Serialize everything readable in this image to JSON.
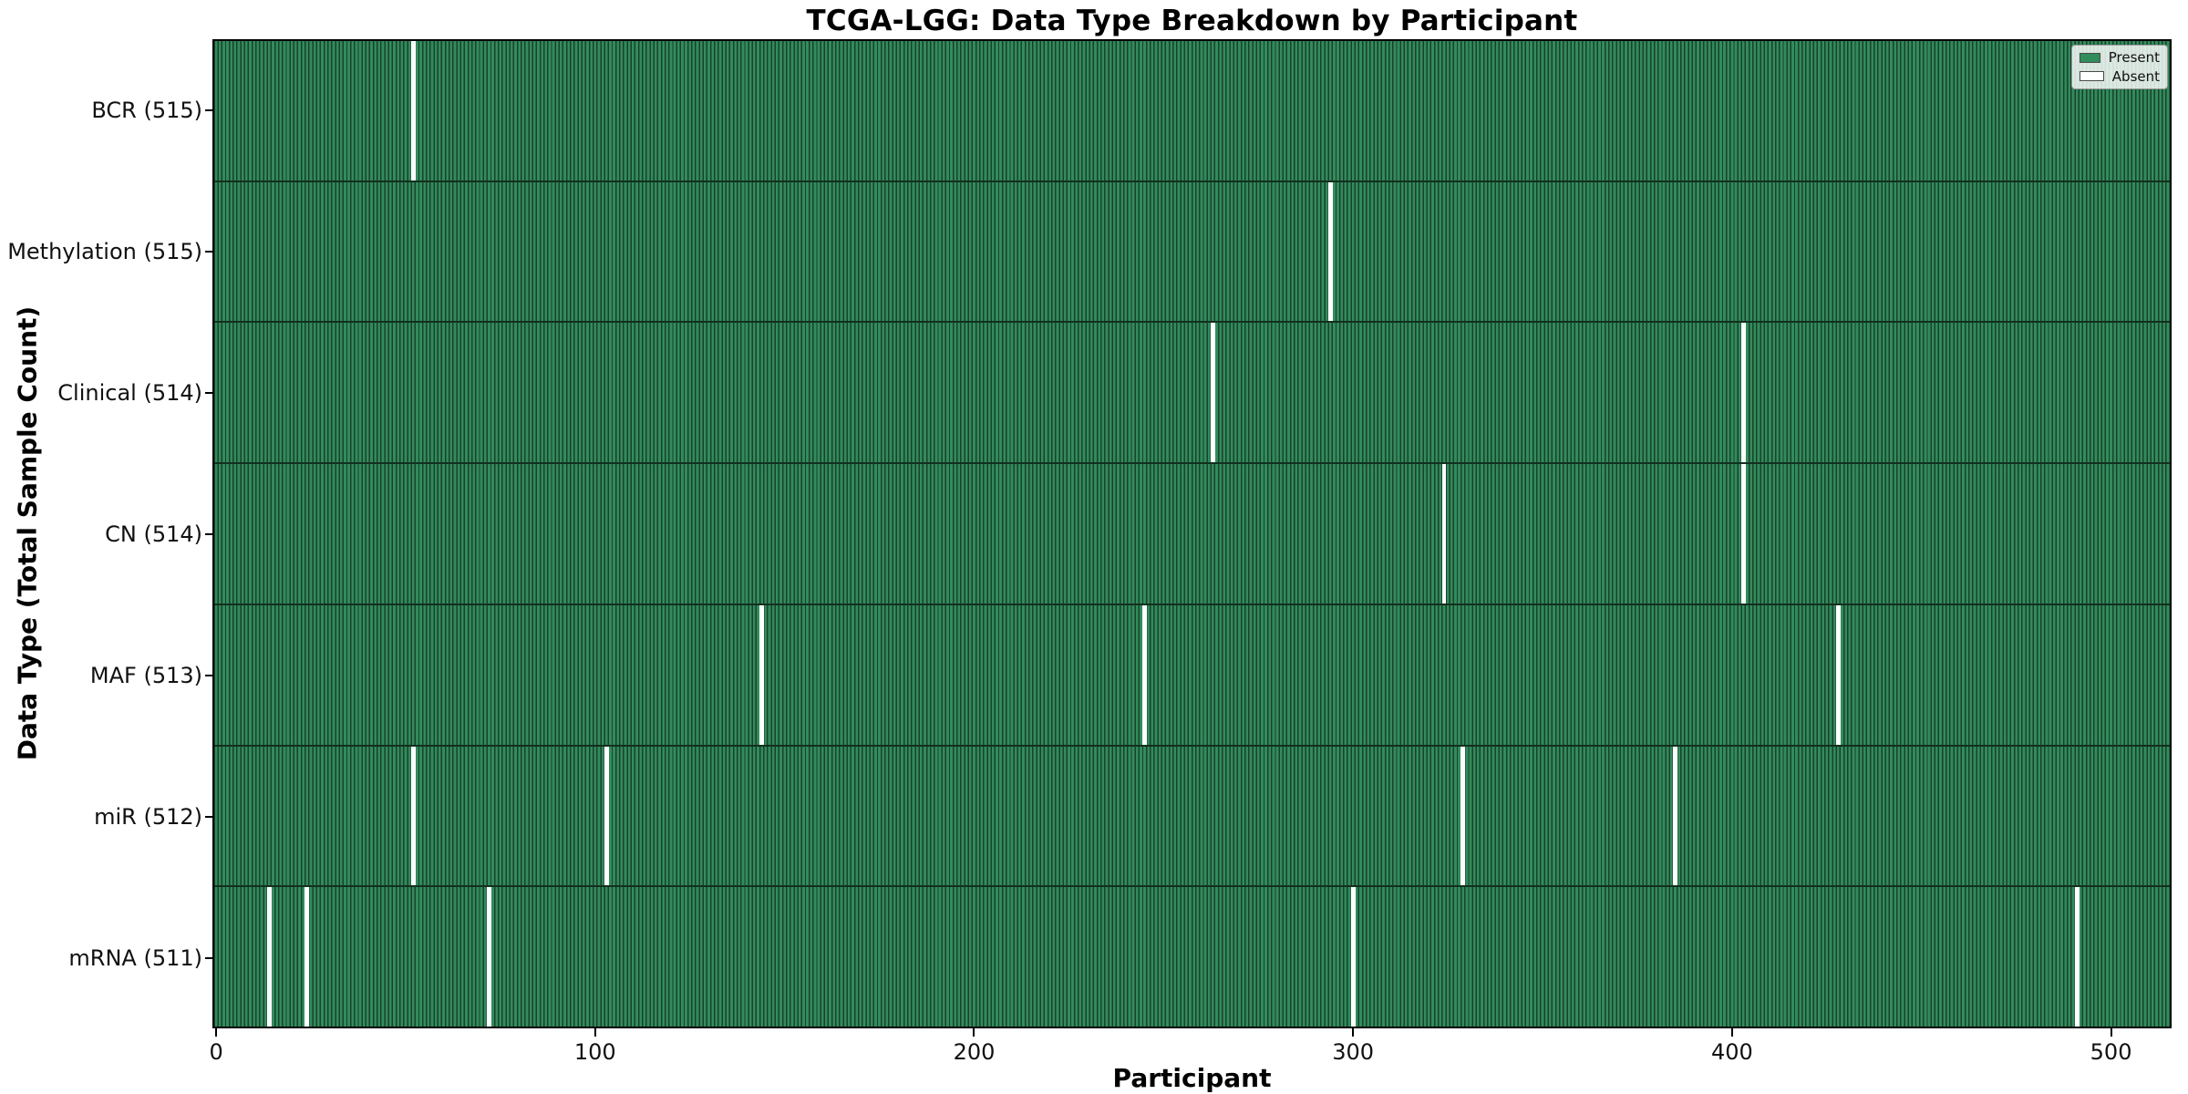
{
  "title": "TCGA-LGG: Data Type Breakdown by Participant",
  "chart_data": {
    "type": "heatmap",
    "title": "TCGA-LGG: Data Type Breakdown by Participant",
    "xlabel": "Participant",
    "ylabel": "Data Type (Total Sample Count)",
    "n_participants": 516,
    "xlim": [
      -0.5,
      515.5
    ],
    "x_ticks": [
      0,
      100,
      200,
      300,
      400,
      500
    ],
    "grid": false,
    "legend": {
      "position": "upper right",
      "entries": [
        {
          "label": "Present",
          "color": "#318c5c"
        },
        {
          "label": "Absent",
          "color": "#ffffff"
        }
      ]
    },
    "colors": {
      "present_fill": "#318c5c",
      "bar_edge": "#1c402c",
      "absent": "#ffffff",
      "row_separator": "#12301f"
    },
    "rows": [
      {
        "label": "BCR (515)",
        "data_type": "BCR",
        "total": 515,
        "absent_participants": [
          52
        ]
      },
      {
        "label": "Methylation (515)",
        "data_type": "Methylation",
        "total": 515,
        "absent_participants": [
          294
        ]
      },
      {
        "label": "Clinical (514)",
        "data_type": "Clinical",
        "total": 514,
        "absent_participants": [
          263,
          403
        ]
      },
      {
        "label": "CN (514)",
        "data_type": "CN",
        "total": 514,
        "absent_participants": [
          324,
          403
        ]
      },
      {
        "label": "MAF (513)",
        "data_type": "MAF",
        "total": 513,
        "absent_participants": [
          144,
          245,
          428
        ]
      },
      {
        "label": "miR (512)",
        "data_type": "miR",
        "total": 512,
        "absent_participants": [
          52,
          103,
          329,
          385
        ]
      },
      {
        "label": "mRNA (511)",
        "data_type": "mRNA",
        "total": 511,
        "absent_participants": [
          14,
          24,
          72,
          300,
          491
        ]
      }
    ]
  }
}
